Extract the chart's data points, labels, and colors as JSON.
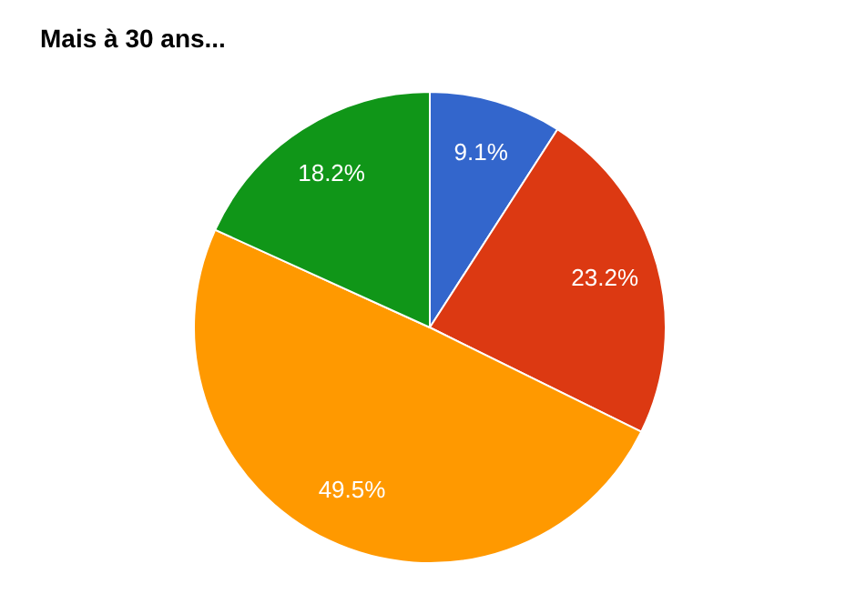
{
  "chart_data": {
    "type": "pie",
    "title": "Mais à 30 ans...",
    "categories": [
      null,
      null,
      null,
      null
    ],
    "values": [
      9.1,
      23.2,
      49.5,
      18.2
    ],
    "colors": [
      "#3366cc",
      "#dc3912",
      "#ff9900",
      "#109618"
    ],
    "value_labels": [
      "9.1%",
      "23.2%",
      "49.5%",
      "18.2%"
    ],
    "legend": false
  }
}
